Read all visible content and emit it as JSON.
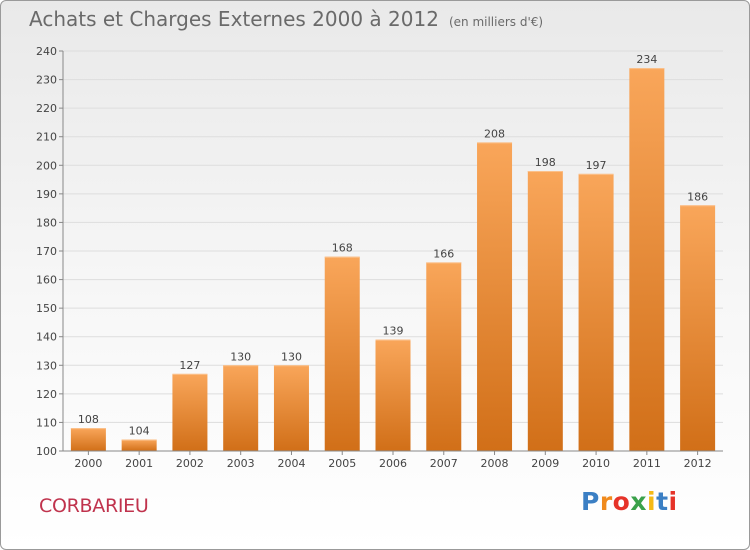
{
  "title": "Achats et Charges Externes 2000 à 2012",
  "unit": "(en milliers d'€)",
  "place": "CORBARIEU",
  "brand": {
    "letters": [
      "P",
      "r",
      "o",
      "x",
      "i",
      "t",
      "i"
    ],
    "colors": [
      "#3b7fc4",
      "#f08a1c",
      "#e63329",
      "#3aa14a",
      "#f5b915",
      "#3b7fc4",
      "#e63329"
    ]
  },
  "chart_data": {
    "type": "bar",
    "categories": [
      "2000",
      "2001",
      "2002",
      "2003",
      "2004",
      "2005",
      "2006",
      "2007",
      "2008",
      "2009",
      "2010",
      "2011",
      "2012"
    ],
    "values": [
      108,
      104,
      127,
      130,
      130,
      168,
      139,
      166,
      208,
      198,
      197,
      234,
      186
    ],
    "ylim": [
      100,
      240
    ],
    "yticks": [
      100,
      110,
      120,
      130,
      140,
      150,
      160,
      170,
      180,
      190,
      200,
      210,
      220,
      230,
      240
    ],
    "grid": true,
    "bar_color_top": "#f9a65a",
    "bar_color_bottom": "#d16f18"
  }
}
